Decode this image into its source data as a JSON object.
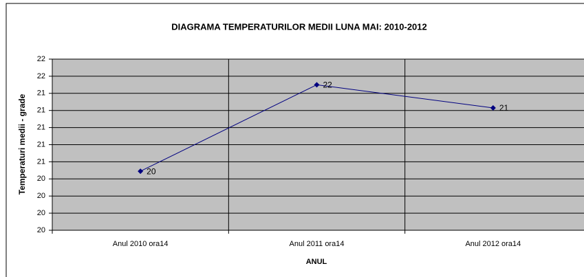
{
  "chart_data": {
    "type": "line",
    "title": "DIAGRAMA TEMPERATURILOR MEDII LUNA MAI: 2010-2012",
    "xlabel": "ANUL",
    "ylabel": "Temperaturi medii  - grade",
    "categories": [
      "Anul 2010 ora14",
      "Anul 2011 ora14",
      "Anul 2012 ora14"
    ],
    "series": [
      {
        "color": "#000080",
        "values": [
          20.49,
          21.5,
          21.23
        ],
        "value_labels": [
          "20",
          "22",
          "21"
        ]
      }
    ],
    "ylim": [
      19.8,
      21.8
    ],
    "yticks": [
      {
        "value": 19.8,
        "label": "20"
      },
      {
        "value": 20.0,
        "label": "20"
      },
      {
        "value": 20.2,
        "label": "20"
      },
      {
        "value": 20.4,
        "label": "20"
      },
      {
        "value": 20.6,
        "label": "21"
      },
      {
        "value": 20.8,
        "label": "21"
      },
      {
        "value": 21.0,
        "label": "21"
      },
      {
        "value": 21.2,
        "label": "21"
      },
      {
        "value": 21.4,
        "label": "21"
      },
      {
        "value": 21.6,
        "label": "22"
      },
      {
        "value": 21.8,
        "label": "22"
      }
    ],
    "grid": true
  }
}
